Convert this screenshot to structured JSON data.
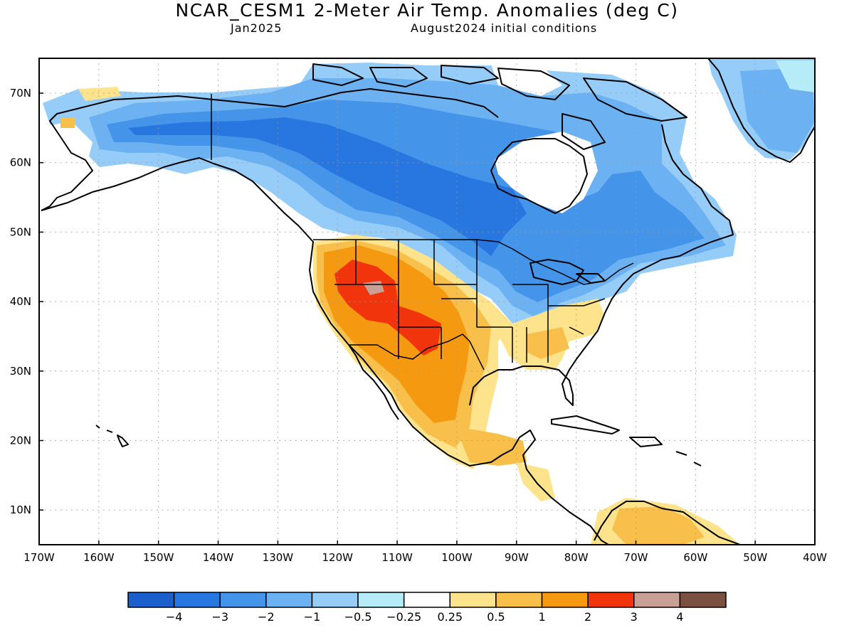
{
  "title": "NCAR_CESM1 2-Meter Air Temp. Anomalies (deg C)",
  "subtitle_left": "Jan2025",
  "subtitle_right": "August2024 initial conditions",
  "lat_ticks": [
    "70N",
    "60N",
    "50N",
    "40N",
    "30N",
    "20N",
    "10N"
  ],
  "lon_ticks": [
    "170W",
    "160W",
    "150W",
    "140W",
    "130W",
    "120W",
    "110W",
    "100W",
    "90W",
    "80W",
    "70W",
    "60W",
    "50W",
    "40W"
  ],
  "colorbar": {
    "colors": [
      "#1a5fcc",
      "#2876e0",
      "#4495ea",
      "#6cb2f2",
      "#96cdf8",
      "#b6ecf8",
      "#ffffff",
      "#fde48c",
      "#f8c04a",
      "#f59a10",
      "#f2340c",
      "#c8a096",
      "#7a5040"
    ],
    "labels": [
      "−4",
      "−3",
      "−2",
      "−1",
      "−0.5",
      "−0.25",
      "0.25",
      "0.5",
      "1",
      "2",
      "3",
      "4"
    ]
  },
  "colors": {
    "coast": "#000000",
    "grid": "#9a9a9a",
    "frame": "#000000"
  }
}
